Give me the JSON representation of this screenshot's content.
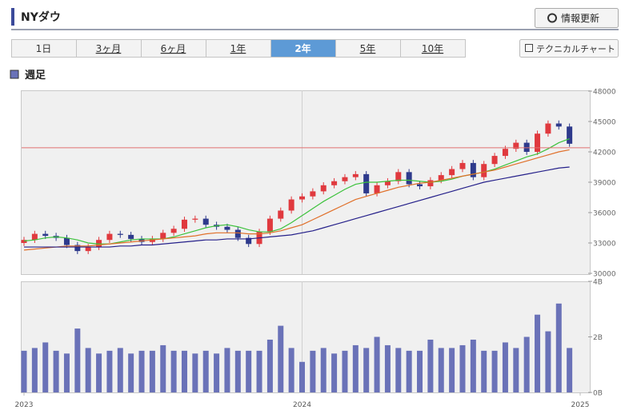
{
  "header": {
    "title": "NYダウ",
    "refresh_button": "情報更新"
  },
  "tabs": {
    "items": [
      "1日",
      "3ヶ月",
      "6ヶ月",
      "1年",
      "2年",
      "5年",
      "10年"
    ],
    "active": 4
  },
  "technical_button": "テクニカルチャート",
  "period_label": "週足",
  "chart_data": [
    {
      "type": "candlestick",
      "x": [
        0,
        2,
        4,
        6,
        8,
        10,
        12,
        14,
        16,
        18,
        20,
        22,
        24,
        26,
        28,
        30,
        32,
        34,
        36,
        38,
        40,
        42,
        44,
        46,
        48,
        50,
        52,
        54,
        56,
        58,
        60,
        62,
        64,
        66,
        68,
        70,
        72,
        74,
        76,
        78,
        80,
        82,
        84,
        86,
        88,
        90,
        92,
        94,
        96,
        98,
        100,
        102
      ],
      "open": [
        33000,
        33300,
        33900,
        33700,
        33500,
        32800,
        32200,
        32600,
        33300,
        33900,
        33800,
        33400,
        33100,
        33400,
        34000,
        34400,
        35300,
        35400,
        34800,
        34600,
        34300,
        33500,
        32900,
        34100,
        35400,
        36200,
        37300,
        37600,
        38100,
        38700,
        39100,
        39500,
        39800,
        37900,
        38700,
        39100,
        40000,
        38800,
        38600,
        39200,
        39700,
        40300,
        40900,
        39500,
        40800,
        41600,
        42300,
        42900,
        42000,
        43800,
        44800,
        44500
      ],
      "high": [
        33600,
        34200,
        34200,
        34000,
        33800,
        33100,
        32900,
        33600,
        34200,
        34200,
        34100,
        33700,
        33700,
        34300,
        34700,
        35600,
        35700,
        35700,
        35100,
        34900,
        34600,
        33800,
        34400,
        35700,
        36500,
        37600,
        37900,
        38400,
        39000,
        39400,
        39800,
        40100,
        40100,
        39000,
        39400,
        40300,
        40300,
        39100,
        39500,
        40000,
        40600,
        41200,
        41200,
        41100,
        41900,
        42600,
        43200,
        43200,
        44100,
        45100,
        45100,
        44800
      ],
      "low": [
        32700,
        33000,
        33400,
        33200,
        32500,
        31900,
        31900,
        32300,
        33000,
        33500,
        33100,
        32800,
        32800,
        33100,
        33700,
        34100,
        35000,
        34500,
        34300,
        34000,
        33200,
        32600,
        32600,
        33800,
        35100,
        35900,
        37000,
        37300,
        37800,
        38400,
        38800,
        39200,
        37600,
        37600,
        38400,
        38800,
        38500,
        38300,
        38300,
        38900,
        39400,
        40000,
        39200,
        39200,
        40500,
        41300,
        42000,
        41700,
        41700,
        43500,
        44200,
        42500
      ],
      "close": [
        33300,
        33900,
        33700,
        33500,
        32800,
        32200,
        32600,
        33300,
        33900,
        33800,
        33400,
        33100,
        33400,
        34000,
        34400,
        35300,
        35400,
        34800,
        34600,
        34300,
        33500,
        32900,
        34100,
        35400,
        36200,
        37300,
        37600,
        38100,
        38700,
        39100,
        39500,
        39800,
        37900,
        38700,
        39100,
        40000,
        38800,
        38600,
        39200,
        39700,
        40300,
        40900,
        39500,
        40800,
        41600,
        42300,
        42900,
        42000,
        43800,
        44800,
        44500,
        42800
      ],
      "up_color": "#e0393e",
      "down_color": "#2e3a8c",
      "series": [
        {
          "color": "#3cc23c",
          "values": [
            33200,
            33300,
            33500,
            33600,
            33500,
            33300,
            33000,
            32900,
            32900,
            33100,
            33300,
            33400,
            33400,
            33400,
            33600,
            33900,
            34200,
            34500,
            34700,
            34800,
            34600,
            34300,
            34100,
            34100,
            34400,
            35000,
            35700,
            36400,
            37100,
            37700,
            38300,
            38800,
            39000,
            39000,
            39100,
            39200,
            39200,
            39100,
            39000,
            39100,
            39300,
            39600,
            39800,
            40000,
            40300,
            40700,
            41100,
            41500,
            41800,
            42300,
            42900,
            43300
          ]
        },
        {
          "color": "#e0702a",
          "values": [
            32300,
            32400,
            32500,
            32600,
            32700,
            32700,
            32700,
            32800,
            32900,
            33000,
            33100,
            33200,
            33300,
            33400,
            33500,
            33600,
            33700,
            33900,
            34000,
            34000,
            34000,
            33900,
            33900,
            34000,
            34200,
            34500,
            34800,
            35300,
            35800,
            36300,
            36800,
            37300,
            37600,
            37900,
            38200,
            38500,
            38700,
            38900,
            39000,
            39200,
            39400,
            39600,
            39800,
            40000,
            40200,
            40500,
            40800,
            41100,
            41400,
            41700,
            42000,
            42200
          ]
        },
        {
          "color": "#25208a",
          "values": [
            32600,
            32600,
            32600,
            32600,
            32600,
            32600,
            32600,
            32600,
            32600,
            32700,
            32700,
            32800,
            32800,
            32900,
            33000,
            33100,
            33200,
            33300,
            33300,
            33400,
            33400,
            33400,
            33500,
            33600,
            33700,
            33800,
            34000,
            34200,
            34500,
            34800,
            35100,
            35400,
            35700,
            36000,
            36300,
            36600,
            36900,
            37200,
            37500,
            37800,
            38100,
            38400,
            38700,
            39000,
            39200,
            39400,
            39600,
            39800,
            40000,
            40200,
            40400,
            40500
          ]
        }
      ],
      "hline": 42400,
      "hline_color": "#e07070",
      "xlim": [
        0,
        104
      ],
      "xgrid": [
        52
      ],
      "ylim": [
        30000,
        48000
      ],
      "yticks": [
        30000,
        33000,
        36000,
        39000,
        42000,
        45000,
        48000
      ]
    },
    {
      "type": "bar",
      "x": [
        0,
        2,
        4,
        6,
        8,
        10,
        12,
        14,
        16,
        18,
        20,
        22,
        24,
        26,
        28,
        30,
        32,
        34,
        36,
        38,
        40,
        42,
        44,
        46,
        48,
        50,
        52,
        54,
        56,
        58,
        60,
        62,
        64,
        66,
        68,
        70,
        72,
        74,
        76,
        78,
        80,
        82,
        84,
        86,
        88,
        90,
        92,
        94,
        96,
        98,
        100,
        102
      ],
      "values": [
        1.5,
        1.6,
        1.8,
        1.5,
        1.4,
        2.3,
        1.6,
        1.4,
        1.5,
        1.6,
        1.4,
        1.5,
        1.5,
        1.7,
        1.5,
        1.5,
        1.4,
        1.5,
        1.4,
        1.6,
        1.5,
        1.5,
        1.5,
        1.9,
        2.4,
        1.6,
        1.1,
        1.5,
        1.6,
        1.4,
        1.5,
        1.7,
        1.6,
        2.0,
        1.7,
        1.6,
        1.5,
        1.5,
        1.9,
        1.6,
        1.6,
        1.7,
        1.9,
        1.5,
        1.5,
        1.8,
        1.6,
        2.0,
        2.8,
        2.2,
        3.2,
        1.6
      ],
      "color": "#6a72b8",
      "xlim": [
        0,
        104
      ],
      "xticks": [
        {
          "value": 0,
          "label": "2023"
        },
        {
          "value": 52,
          "label": "2024"
        },
        {
          "value": 104,
          "label": "2025"
        }
      ],
      "ylim": [
        0,
        4
      ],
      "yticks": [
        {
          "value": 0,
          "label": "0B"
        },
        {
          "value": 2,
          "label": "2B"
        },
        {
          "value": 4,
          "label": "4B"
        }
      ]
    }
  ]
}
